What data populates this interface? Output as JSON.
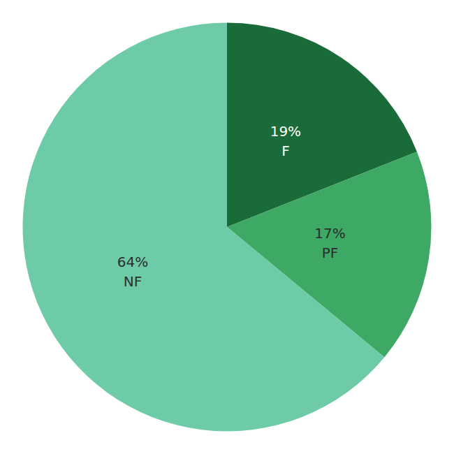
{
  "chart_data": {
    "type": "pie",
    "categories": [
      "F",
      "PF",
      "NF"
    ],
    "values": [
      19,
      17,
      64
    ],
    "value_labels": [
      "19%",
      "17%",
      "64%"
    ],
    "colors": [
      "#1a6b3a",
      "#3ea865",
      "#6dcba8"
    ],
    "data_labels": true,
    "legend": false
  }
}
